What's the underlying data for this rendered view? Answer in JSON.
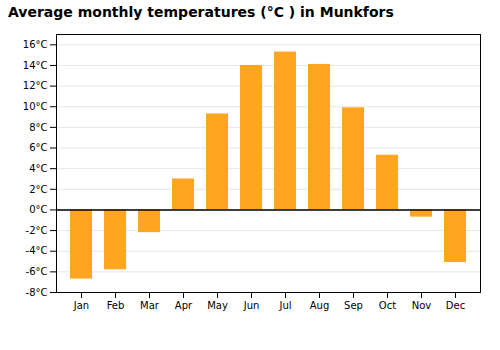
{
  "chart_data": {
    "type": "bar",
    "title": "Average monthly temperatures (°C ) in Munkfors",
    "categories": [
      "Jan",
      "Feb",
      "Mar",
      "Apr",
      "May",
      "Jun",
      "Jul",
      "Aug",
      "Sep",
      "Oct",
      "Nov",
      "Dec"
    ],
    "values": [
      -6.7,
      -5.8,
      -2.2,
      3.0,
      9.3,
      14.0,
      15.3,
      14.1,
      9.9,
      5.3,
      -0.7,
      -5.1
    ],
    "color": "#FFA520",
    "ylim": [
      -8,
      17
    ],
    "yticks": [
      {
        "value": -8,
        "label": "-8°C"
      },
      {
        "value": -6,
        "label": "-6°C"
      },
      {
        "value": -4,
        "label": "-4°C"
      },
      {
        "value": -2,
        "label": "-2°C"
      },
      {
        "value": 0,
        "label": "0°C"
      },
      {
        "value": 2,
        "label": "2°C"
      },
      {
        "value": 4,
        "label": "4°C"
      },
      {
        "value": 6,
        "label": "6°C"
      },
      {
        "value": 8,
        "label": "8°C"
      },
      {
        "value": 10,
        "label": "10°C"
      },
      {
        "value": 12,
        "label": "12°C"
      },
      {
        "value": 14,
        "label": "14°C"
      },
      {
        "value": 16,
        "label": "16°C"
      }
    ],
    "grid": true
  }
}
